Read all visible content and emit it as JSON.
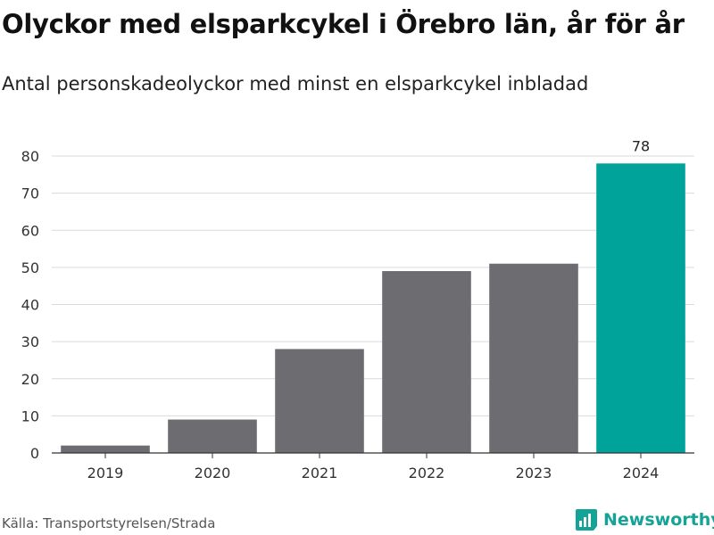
{
  "title": "Olyckor med elsparkcykel i Örebro län, år för år",
  "subtitle": "Antal personskadeolyckor med minst en elsparkcykel inbladad",
  "source": "Källa: Transportstyrelsen/Strada",
  "brand": {
    "name": "Newsworthy",
    "icon": "newsworthy-logo-icon",
    "color": "#14a396"
  },
  "colors": {
    "default_bar": "#6d6c71",
    "highlight_bar": "#00a39a",
    "grid": "#d9d9d9",
    "axis": "#333333"
  },
  "chart_data": {
    "type": "bar",
    "categories": [
      "2019",
      "2020",
      "2021",
      "2022",
      "2023",
      "2024"
    ],
    "values": [
      2,
      9,
      28,
      49,
      51,
      78
    ],
    "highlight_index": 5,
    "data_labels": [
      null,
      null,
      null,
      null,
      null,
      "78"
    ],
    "ylim": [
      0,
      80
    ],
    "yticks": [
      0,
      10,
      20,
      30,
      40,
      50,
      60,
      70,
      80
    ],
    "grid": true,
    "xlabel": "",
    "ylabel": ""
  }
}
